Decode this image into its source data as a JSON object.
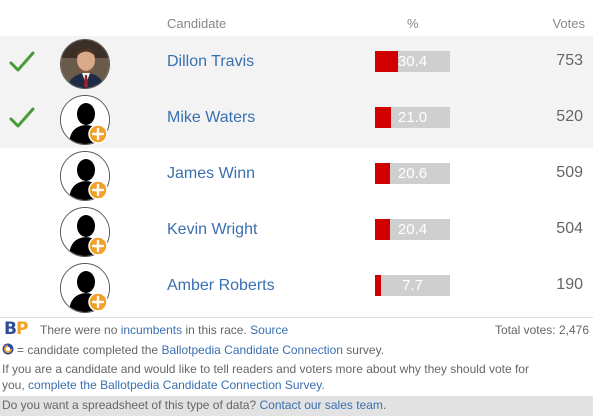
{
  "header": {
    "candidate": "Candidate",
    "percent": "%",
    "votes": "Votes"
  },
  "colors": {
    "bar_fill": "#d10000",
    "bar_bg": "#cfcfcf",
    "link": "#3a6fb0",
    "check": "#4a9a3a"
  },
  "candidates": [
    {
      "name": "Dillon Travis",
      "percent": 30.4,
      "percent_label": "30.4",
      "votes": "753",
      "winner": true,
      "photo": true,
      "cc": false
    },
    {
      "name": "Mike Waters",
      "percent": 21.0,
      "percent_label": "21.0",
      "votes": "520",
      "winner": true,
      "photo": false,
      "cc": true
    },
    {
      "name": "James Winn",
      "percent": 20.6,
      "percent_label": "20.6",
      "votes": "509",
      "winner": false,
      "photo": false,
      "cc": true
    },
    {
      "name": "Kevin Wright",
      "percent": 20.4,
      "percent_label": "20.4",
      "votes": "504",
      "winner": false,
      "photo": false,
      "cc": true
    },
    {
      "name": "Amber Roberts",
      "percent": 7.7,
      "percent_label": "7.7",
      "votes": "190",
      "winner": false,
      "photo": false,
      "cc": true
    }
  ],
  "footer": {
    "logo_b": "B",
    "logo_p": "P",
    "incumbents_pre": "There were no",
    "incumbents_link": "incumbents",
    "incumbents_post": "in this race.",
    "source_link": "Source",
    "total_votes": "Total votes: 2,476",
    "cc_pre": "= candidate completed the",
    "cc_link": "Ballotpedia Candidate Connection",
    "cc_post": "survey.",
    "invite_line": "If you are a candidate and would like to tell readers and voters more about why they should vote for",
    "invite_pre": "you,",
    "invite_link": "complete the Ballotpedia Candidate Connection Survey",
    "invite_post": ".",
    "sales_pre": "Do you want a spreadsheet of this type of data?",
    "sales_link": "Contact our sales team",
    "sales_post": "."
  }
}
